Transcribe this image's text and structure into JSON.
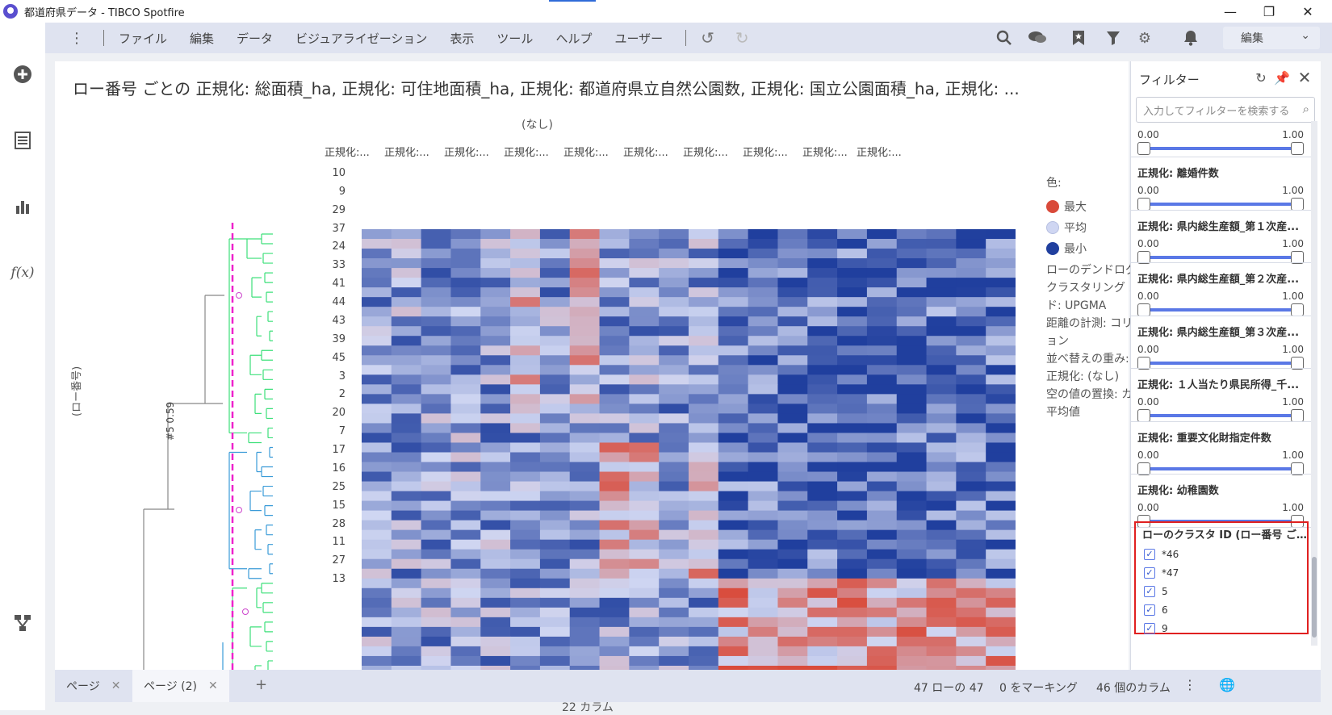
{
  "window": {
    "title": "都道府県データ - TIBCO Spotfire"
  },
  "menu": {
    "items": [
      "ファイル",
      "編集",
      "データ",
      "ビジュアライゼーション",
      "表示",
      "ツール",
      "ヘルプ",
      "ユーザー"
    ],
    "mode": "編集"
  },
  "visualization": {
    "title": "ロー番号 ごとの 正規化: 総面積_ha, 正規化: 可住地面積_ha, 正規化: 都道府県立自然公園数, 正規化: 国立公園面積_ha, 正規化: ...",
    "column_axis": "(なし)",
    "column_labels": [
      "正規化:...",
      "正規化:...",
      "正規化:...",
      "正規化:...",
      "正規化:...",
      "正規化:...",
      "正規化:...",
      "正規化:...",
      "正規化:...",
      "正規化:..."
    ],
    "row_axis": "(ロー番号)",
    "cut_label": "#5 0.59",
    "row_labels": [
      "10",
      "9",
      "29",
      "37",
      "24",
      "33",
      "41",
      "44",
      "43",
      "39",
      "45",
      "3",
      "2",
      "20",
      "7",
      "17",
      "16",
      "25",
      "15",
      "28",
      "11",
      "27",
      "13"
    ],
    "column_count": "22 カラム"
  },
  "chart_data": {
    "type": "heatmap",
    "rows": 47,
    "columns": 22,
    "legend": {
      "title": "色:",
      "max": "最大",
      "avg": "平均",
      "min": "最小",
      "colors": {
        "max": "#d94a3a",
        "avg": "#cfd6f2",
        "min": "#203f9e"
      }
    },
    "row_dendrogram": "ローのデンドログラム:",
    "method": "クラスタリング メソッド: UPGMA",
    "distance": "距離の計測: コリレーション",
    "reorder": "並べ替えの重み: 平均値",
    "normalization": "正規化: (なし)",
    "empty": "空の値の置換: カラムの平均値"
  },
  "filter_panel": {
    "title": "フィルター",
    "search_placeholder": "入力してフィルターを検索する",
    "filters": [
      {
        "name": "",
        "min": "0.00",
        "max": "1.00"
      },
      {
        "name": "正規化: 離婚件数",
        "min": "0.00",
        "max": "1.00"
      },
      {
        "name": "正規化: 県内総生産額_第１次産...",
        "min": "0.00",
        "max": "1.00"
      },
      {
        "name": "正規化: 県内総生産額_第２次産...",
        "min": "0.00",
        "max": "1.00"
      },
      {
        "name": "正規化: 県内総生産額_第３次産...",
        "min": "0.00",
        "max": "1.00"
      },
      {
        "name": "正規化: １人当たり県民所得_千...",
        "min": "0.00",
        "max": "1.00"
      },
      {
        "name": "正規化: 重要文化財指定件数",
        "min": "0.00",
        "max": "1.00"
      },
      {
        "name": "正規化: 幼稚園数",
        "min": "0.00",
        "max": "1.00"
      }
    ],
    "cluster_filter": {
      "name": "ローのクラスタ ID (ロー番号 ご...",
      "items": [
        "*46",
        "*47",
        "5",
        "6",
        "9"
      ]
    }
  },
  "tabs": [
    {
      "label": "ページ"
    },
    {
      "label": "ページ (2)"
    }
  ],
  "status": {
    "rows": "47 ローの 47",
    "marked": "0 をマーキング",
    "columns": "46 個のカラム"
  }
}
